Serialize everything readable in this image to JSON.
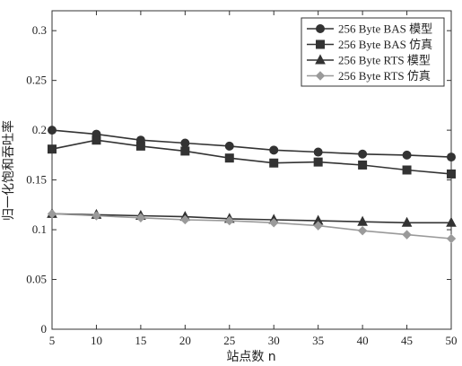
{
  "chart_data": {
    "type": "line",
    "xlabel": "站点数 n",
    "ylabel": "归一化饱和吞吐率",
    "xlim": [
      5,
      50
    ],
    "ylim": [
      0,
      0.32
    ],
    "x_ticks": [
      "5",
      "10",
      "15",
      "20",
      "25",
      "30",
      "35",
      "40",
      "45",
      "50"
    ],
    "y_ticks": [
      "0",
      "0.05",
      "0.1",
      "0.15",
      "0.2",
      "0.25",
      "0.3"
    ],
    "legend_position": "top-right",
    "grid": false,
    "x": [
      5,
      10,
      15,
      20,
      25,
      30,
      35,
      40,
      45,
      50
    ],
    "series": [
      {
        "name": "256 Byte BAS 模型",
        "marker": "circle",
        "color": "#333333",
        "values": [
          0.2,
          0.196,
          0.19,
          0.187,
          0.184,
          0.18,
          0.178,
          0.176,
          0.175,
          0.173
        ]
      },
      {
        "name": "256 Byte BAS 仿真",
        "marker": "square",
        "color": "#333333",
        "values": [
          0.181,
          0.19,
          0.184,
          0.179,
          0.172,
          0.167,
          0.168,
          0.165,
          0.16,
          0.156
        ]
      },
      {
        "name": "256 Byte RTS 模型",
        "marker": "triangle",
        "color": "#333333",
        "values": [
          0.116,
          0.115,
          0.114,
          0.113,
          0.111,
          0.11,
          0.109,
          0.108,
          0.107,
          0.107
        ]
      },
      {
        "name": "256 Byte RTS 仿真",
        "marker": "diamond",
        "color": "#9a9a9a",
        "values": [
          0.116,
          0.114,
          0.112,
          0.11,
          0.109,
          0.107,
          0.104,
          0.099,
          0.095,
          0.091
        ]
      }
    ]
  }
}
